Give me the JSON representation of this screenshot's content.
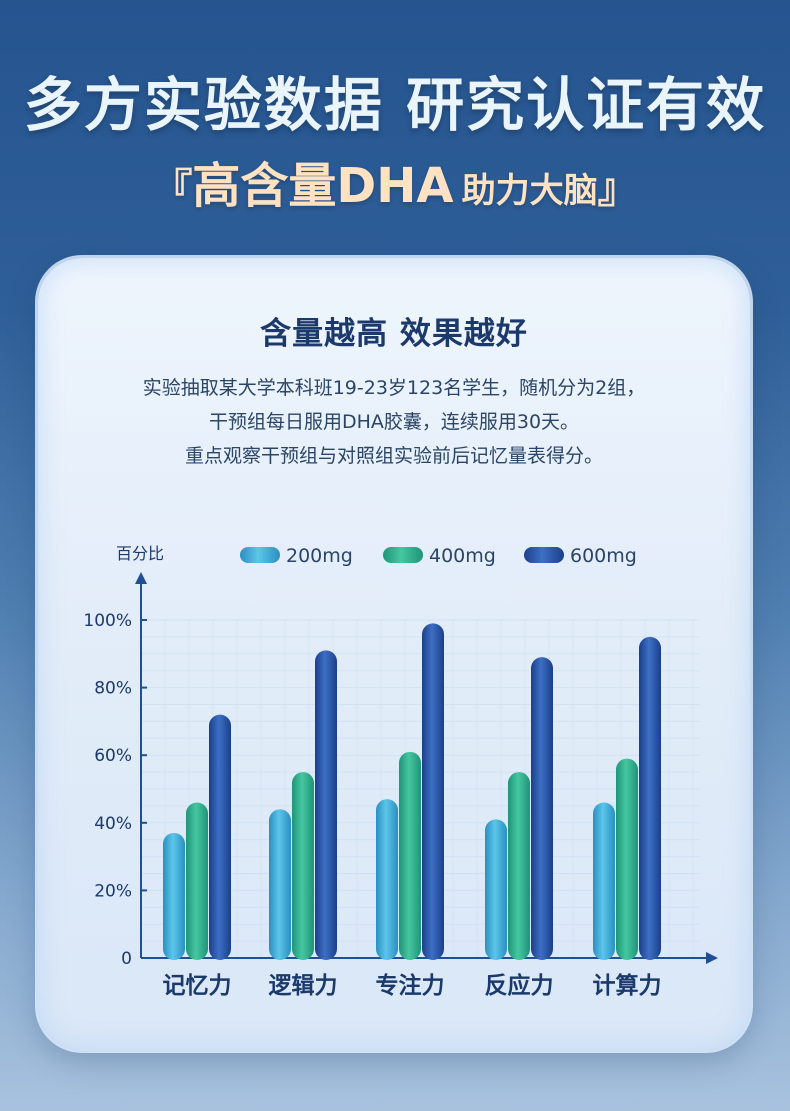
{
  "header": {
    "title": "多方实验数据 研究认证有效",
    "sub_open": "『",
    "sub_main": "高含量DHA",
    "sub_small": "助力大脑",
    "sub_close": "』"
  },
  "card": {
    "title": "含量越高 效果越好",
    "desc_lines": [
      "实验抽取某大学本科班19-23岁123名学生，随机分为2组，",
      "干预组每日服用DHA胶囊，连续服用30天。",
      "重点观察干预组与对照组实验前后记忆量表得分。"
    ]
  },
  "colors": {
    "series": [
      "#3aa6cf",
      "#2fae8c",
      "#2450a0"
    ],
    "axis": "#1f4f94",
    "label": "#1b3a6b"
  },
  "chart_data": {
    "type": "bar",
    "ylabel": "百分比",
    "categories": [
      "记忆力",
      "逻辑力",
      "专注力",
      "反应力",
      "计算力"
    ],
    "series": [
      {
        "name": "200mg",
        "values": [
          37,
          44,
          47,
          41,
          46
        ]
      },
      {
        "name": "400mg",
        "values": [
          46,
          55,
          61,
          55,
          59
        ]
      },
      {
        "name": "600mg",
        "values": [
          72,
          91,
          99,
          89,
          95
        ]
      }
    ],
    "yticks": [
      "0",
      "20%",
      "40%",
      "60%",
      "80%",
      "100%"
    ],
    "ylim": [
      0,
      100
    ],
    "grid": true,
    "legend": "top"
  }
}
